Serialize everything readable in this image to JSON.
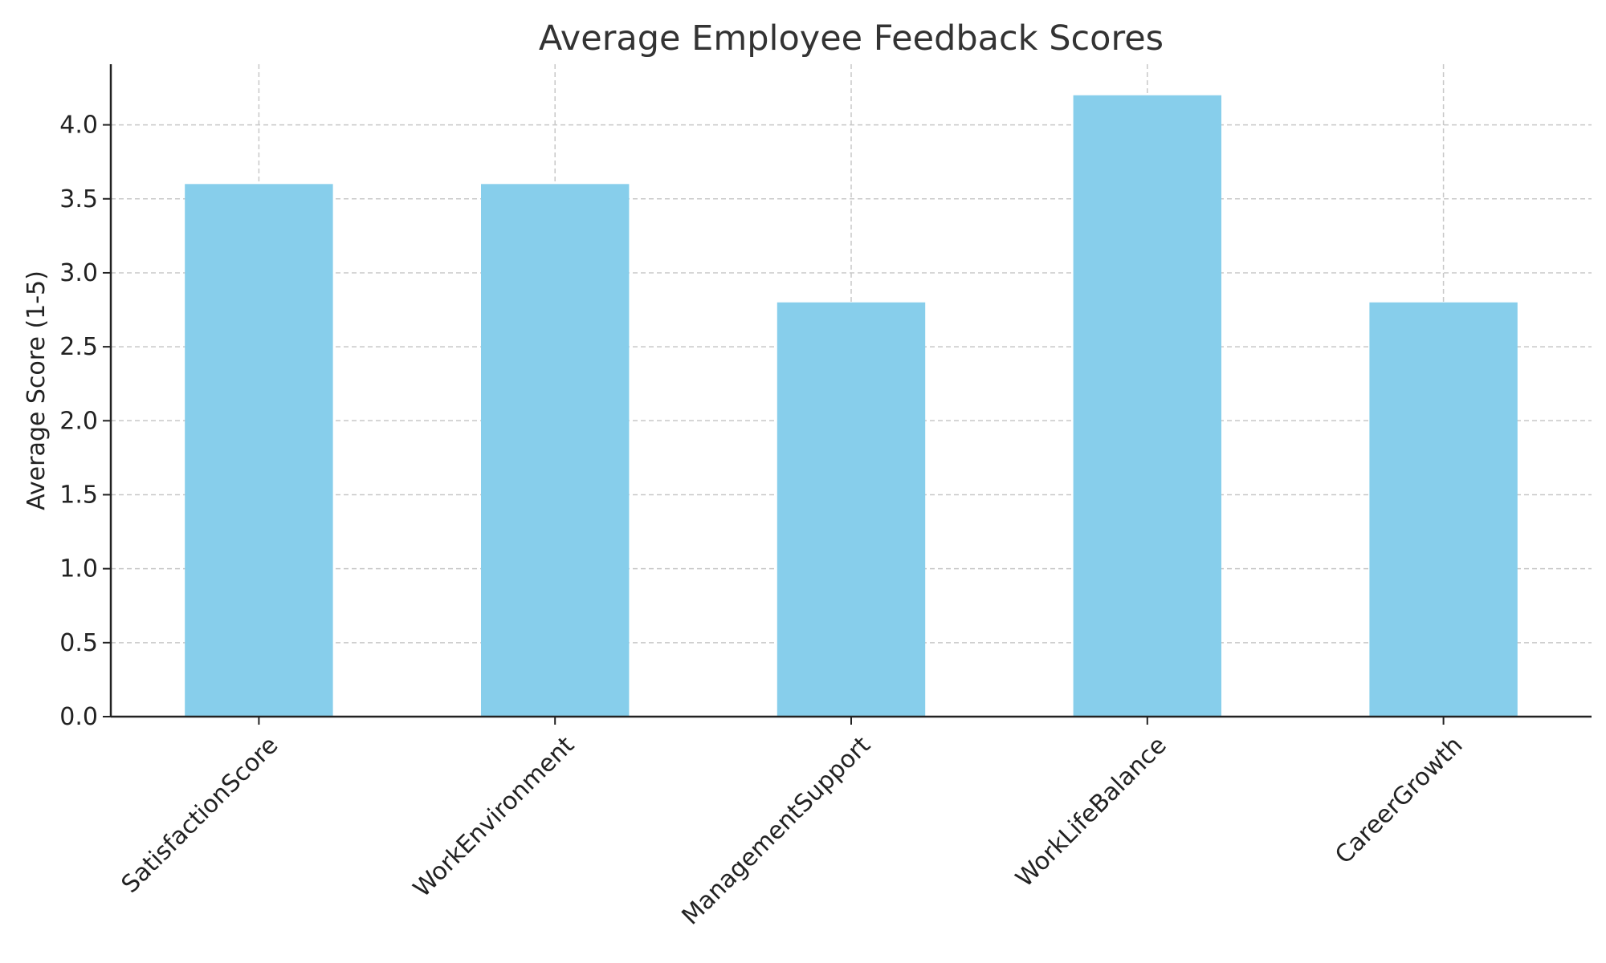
{
  "chart_data": {
    "type": "bar",
    "title": "Average Employee Feedback Scores",
    "xlabel": "",
    "ylabel": "Average Score (1-5)",
    "categories": [
      "SatisfactionScore",
      "WorkEnvironment",
      "ManagementSupport",
      "WorkLifeBalance",
      "CareerGrowth"
    ],
    "values": [
      3.6,
      3.6,
      2.8,
      4.2,
      2.8
    ],
    "ylim": [
      0,
      4.41
    ],
    "yticks": [
      "0.0",
      "0.5",
      "1.0",
      "1.5",
      "2.0",
      "2.5",
      "3.0",
      "3.5",
      "4.0"
    ],
    "grid": true,
    "colors": {
      "bar": "#87ceeb"
    }
  }
}
